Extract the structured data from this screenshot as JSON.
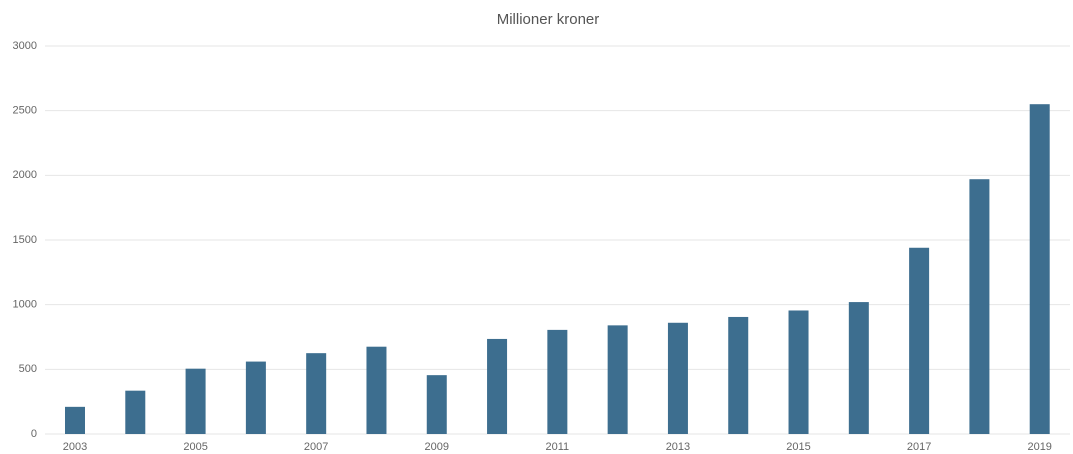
{
  "chart_data": {
    "type": "bar",
    "title": "Millioner kroner",
    "categories": [
      "2003",
      null,
      "2005",
      null,
      "2007",
      null,
      "2009",
      null,
      "2011",
      null,
      "2013",
      null,
      "2015",
      null,
      "2017",
      null,
      "2019"
    ],
    "values": [
      210,
      335,
      505,
      560,
      625,
      675,
      455,
      735,
      805,
      840,
      860,
      905,
      955,
      1020,
      1440,
      1970,
      2550
    ],
    "color": "#3d6e8f",
    "ylim": [
      0,
      3000
    ],
    "yticks": [
      0,
      500,
      1000,
      1500,
      2000,
      2500,
      3000
    ],
    "grid": true
  }
}
